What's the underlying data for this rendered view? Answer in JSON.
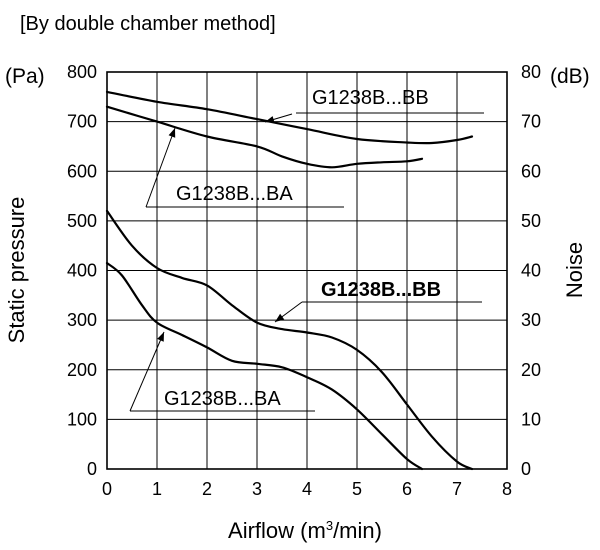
{
  "method_note": "[By double chamber method]",
  "chart_data": {
    "type": "line",
    "x_axis": {
      "label_prefix": "Airflow (m",
      "label_sup": "3",
      "label_suffix": "/min)",
      "range": [
        0,
        8
      ],
      "ticks": [
        0,
        1,
        2,
        3,
        4,
        5,
        6,
        7,
        8
      ]
    },
    "y_left": {
      "label": "Static pressure",
      "unit": "(Pa)",
      "range": [
        0,
        800
      ],
      "ticks": [
        0,
        100,
        200,
        300,
        400,
        500,
        600,
        700,
        800
      ]
    },
    "y_right": {
      "label": "Noise",
      "unit": "(dB)",
      "range": [
        0,
        80
      ],
      "ticks": [
        0,
        10,
        20,
        30,
        40,
        50,
        60,
        70,
        80
      ]
    },
    "grid": true,
    "series": [
      {
        "name": "G1238B...BB",
        "kind": "static_pressure",
        "axis": "left",
        "points": [
          [
            0,
            520
          ],
          [
            0.5,
            450
          ],
          [
            1,
            405
          ],
          [
            1.5,
            385
          ],
          [
            2,
            370
          ],
          [
            2.5,
            330
          ],
          [
            3,
            295
          ],
          [
            3.5,
            282
          ],
          [
            4,
            275
          ],
          [
            4.5,
            265
          ],
          [
            5,
            240
          ],
          [
            5.5,
            195
          ],
          [
            6,
            130
          ],
          [
            6.5,
            65
          ],
          [
            7,
            15
          ],
          [
            7.3,
            0
          ]
        ]
      },
      {
        "name": "G1238B...BA",
        "kind": "static_pressure",
        "axis": "left",
        "points": [
          [
            0,
            415
          ],
          [
            0.3,
            390
          ],
          [
            0.7,
            330
          ],
          [
            1,
            295
          ],
          [
            1.5,
            270
          ],
          [
            2,
            245
          ],
          [
            2.5,
            218
          ],
          [
            3,
            212
          ],
          [
            3.5,
            205
          ],
          [
            4,
            185
          ],
          [
            4.5,
            160
          ],
          [
            5,
            120
          ],
          [
            5.5,
            70
          ],
          [
            6,
            20
          ],
          [
            6.3,
            0
          ]
        ]
      },
      {
        "name": "G1238B...BB",
        "kind": "noise",
        "axis": "right",
        "points": [
          [
            0,
            76
          ],
          [
            1,
            74
          ],
          [
            2,
            72.5
          ],
          [
            3,
            70.5
          ],
          [
            4,
            68.5
          ],
          [
            5,
            66.5
          ],
          [
            6,
            65.8
          ],
          [
            6.5,
            65.7
          ],
          [
            7,
            66.3
          ],
          [
            7.3,
            67
          ]
        ]
      },
      {
        "name": "G1238B...BA",
        "kind": "noise",
        "axis": "right",
        "points": [
          [
            0,
            73
          ],
          [
            1,
            70
          ],
          [
            2,
            67
          ],
          [
            3,
            65
          ],
          [
            3.5,
            63
          ],
          [
            4,
            61.5
          ],
          [
            4.5,
            60.8
          ],
          [
            5,
            61.5
          ],
          [
            5.5,
            61.8
          ],
          [
            6,
            62
          ],
          [
            6.3,
            62.5
          ]
        ]
      }
    ],
    "annotations": [
      {
        "text": "G1238B...BB",
        "bold": false,
        "target_series": 2
      },
      {
        "text": "G1238B...BA",
        "bold": false,
        "target_series": 3
      },
      {
        "text": "G1238B...BB",
        "bold": true,
        "target_series": 0
      },
      {
        "text": "G1238B...BA",
        "bold": false,
        "target_series": 1
      }
    ]
  }
}
